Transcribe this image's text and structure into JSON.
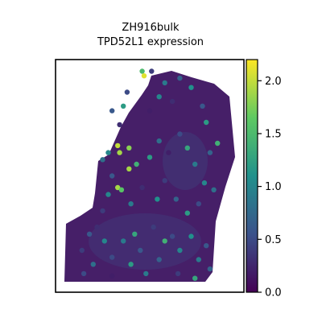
{
  "chart_data": {
    "type": "scatter",
    "title": "ZH916bulk",
    "subtitle": "TPD52L1 expression",
    "xlabel": "",
    "ylabel": "",
    "axes_ticks_visible": false,
    "grid": false,
    "colormap": "viridis",
    "colors": [
      "#440154",
      "#3b528b",
      "#21918c",
      "#5ec962",
      "#fde725"
    ],
    "colorbar": {
      "placement": "right",
      "range": [
        0,
        2.2
      ],
      "ticks": [
        0.0,
        0.5,
        1.0,
        1.5,
        2.0
      ],
      "tick_labels": [
        "0.0",
        "0.5",
        "1.0",
        "1.5",
        "2.0"
      ]
    },
    "points_description": "Spatial transcriptomics spots forming a tissue section; mostly low expression (dark purple) with scattered higher-expression spots (teal/green/yellow).",
    "points": [
      [
        0.46,
        0.95,
        1.5
      ],
      [
        0.47,
        0.93,
        2.1
      ],
      [
        0.51,
        0.95,
        0.4
      ],
      [
        0.58,
        0.9,
        0.9
      ],
      [
        0.66,
        0.92,
        0.7
      ],
      [
        0.72,
        0.88,
        1.1
      ],
      [
        0.78,
        0.8,
        0.6
      ],
      [
        0.8,
        0.73,
        1.2
      ],
      [
        0.62,
        0.82,
        0.3
      ],
      [
        0.55,
        0.84,
        1.0
      ],
      [
        0.5,
        0.78,
        0.2
      ],
      [
        0.38,
        0.86,
        0.5
      ],
      [
        0.36,
        0.8,
        1.2
      ],
      [
        0.3,
        0.78,
        0.6
      ],
      [
        0.34,
        0.72,
        0.3
      ],
      [
        0.33,
        0.63,
        2.0
      ],
      [
        0.34,
        0.6,
        1.9
      ],
      [
        0.39,
        0.62,
        1.8
      ],
      [
        0.28,
        0.6,
        1.0
      ],
      [
        0.25,
        0.57,
        0.8
      ],
      [
        0.39,
        0.53,
        1.9
      ],
      [
        0.43,
        0.55,
        1.4
      ],
      [
        0.5,
        0.58,
        1.2
      ],
      [
        0.55,
        0.65,
        0.8
      ],
      [
        0.6,
        0.6,
        0.2
      ],
      [
        0.66,
        0.68,
        0.5
      ],
      [
        0.7,
        0.62,
        1.3
      ],
      [
        0.74,
        0.55,
        0.9
      ],
      [
        0.79,
        0.47,
        1.0
      ],
      [
        0.82,
        0.6,
        0.7
      ],
      [
        0.86,
        0.64,
        1.4
      ],
      [
        0.3,
        0.5,
        0.6
      ],
      [
        0.33,
        0.45,
        1.9
      ],
      [
        0.35,
        0.44,
        1.6
      ],
      [
        0.28,
        0.42,
        1.0
      ],
      [
        0.25,
        0.35,
        0.4
      ],
      [
        0.4,
        0.38,
        0.9
      ],
      [
        0.46,
        0.45,
        0.3
      ],
      [
        0.54,
        0.4,
        1.1
      ],
      [
        0.58,
        0.48,
        0.4
      ],
      [
        0.64,
        0.4,
        0.7
      ],
      [
        0.7,
        0.34,
        1.2
      ],
      [
        0.76,
        0.38,
        0.5
      ],
      [
        0.84,
        0.44,
        0.8
      ],
      [
        0.22,
        0.28,
        0.3
      ],
      [
        0.18,
        0.25,
        0.6
      ],
      [
        0.26,
        0.22,
        1.0
      ],
      [
        0.14,
        0.18,
        0.4
      ],
      [
        0.2,
        0.12,
        0.8
      ],
      [
        0.3,
        0.15,
        0.5
      ],
      [
        0.36,
        0.22,
        0.9
      ],
      [
        0.42,
        0.25,
        1.3
      ],
      [
        0.45,
        0.18,
        0.6
      ],
      [
        0.52,
        0.28,
        0.4
      ],
      [
        0.55,
        0.14,
        0.7
      ],
      [
        0.62,
        0.24,
        0.5
      ],
      [
        0.66,
        0.18,
        1.0
      ],
      [
        0.72,
        0.24,
        1.1
      ],
      [
        0.76,
        0.14,
        0.9
      ],
      [
        0.8,
        0.2,
        0.6
      ],
      [
        0.82,
        0.1,
        0.7
      ],
      [
        0.74,
        0.06,
        1.3
      ],
      [
        0.65,
        0.08,
        0.4
      ],
      [
        0.48,
        0.08,
        0.9
      ],
      [
        0.3,
        0.07,
        0.2
      ],
      [
        0.15,
        0.08,
        0.5
      ],
      [
        0.4,
        0.12,
        1.2
      ],
      [
        0.58,
        0.22,
        1.4
      ]
    ]
  }
}
